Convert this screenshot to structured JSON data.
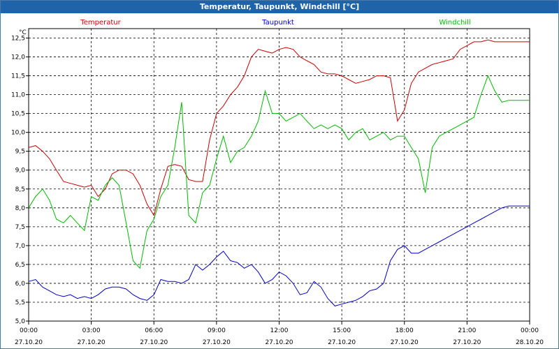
{
  "window": {
    "title": "Temperatur, Taupunkt, Windchill [°C]"
  },
  "chart_data": {
    "type": "line",
    "title": "Temperatur, Taupunkt, Windchill [°C]",
    "ylabel": "°C",
    "xlabel": "",
    "ylim": [
      5.0,
      12.75
    ],
    "xlim": [
      0,
      24
    ],
    "grid": true,
    "legend_placement": "top",
    "y_ticks": [
      "5,0",
      "5,5",
      "6,0",
      "6,5",
      "7,0",
      "7,5",
      "8,0",
      "8,5",
      "9,0",
      "9,5",
      "10,0",
      "10,5",
      "11,0",
      "11,5",
      "12,0",
      "12,5"
    ],
    "x_ticks": [
      {
        "time": "00:00",
        "date": "27.10.20"
      },
      {
        "time": "03:00",
        "date": "27.10.20"
      },
      {
        "time": "06:00",
        "date": "27.10.20"
      },
      {
        "time": "09:00",
        "date": "27.10.20"
      },
      {
        "time": "12:00",
        "date": "27.10.20"
      },
      {
        "time": "15:00",
        "date": "27.10.20"
      },
      {
        "time": "18:00",
        "date": "27.10.20"
      },
      {
        "time": "21:00",
        "date": "27.10.20"
      },
      {
        "time": "00:00",
        "date": "28.10.20"
      }
    ],
    "series": [
      {
        "name": "Temperatur",
        "color": "#cc0000",
        "x": [
          0,
          0.33,
          0.67,
          1,
          1.33,
          1.67,
          2,
          2.33,
          2.67,
          3,
          3.33,
          3.67,
          4,
          4.33,
          4.67,
          5,
          5.33,
          5.67,
          6,
          6.33,
          6.67,
          7,
          7.33,
          7.67,
          8,
          8.33,
          8.67,
          9,
          9.33,
          9.67,
          10,
          10.33,
          10.67,
          11,
          11.33,
          11.67,
          12,
          12.33,
          12.67,
          13,
          13.33,
          13.67,
          14,
          14.33,
          14.67,
          15,
          15.33,
          15.67,
          16,
          16.33,
          16.67,
          17,
          17.33,
          17.67,
          18,
          18.33,
          18.67,
          19,
          19.33,
          19.67,
          20,
          20.33,
          20.67,
          21,
          21.33,
          21.67,
          22,
          22.33,
          22.67,
          23,
          23.33,
          23.67,
          24
        ],
        "y": [
          9.6,
          9.65,
          9.5,
          9.3,
          9.0,
          8.7,
          8.65,
          8.6,
          8.55,
          8.6,
          8.3,
          8.5,
          8.9,
          9.0,
          9.0,
          8.9,
          8.6,
          8.1,
          7.8,
          8.5,
          9.1,
          9.15,
          9.1,
          8.75,
          8.7,
          8.7,
          9.8,
          10.5,
          10.7,
          11.0,
          11.2,
          11.5,
          12.0,
          12.2,
          12.15,
          12.1,
          12.2,
          12.25,
          12.2,
          12.0,
          11.9,
          11.8,
          11.6,
          11.55,
          11.55,
          11.5,
          11.4,
          11.3,
          11.35,
          11.4,
          11.5,
          11.5,
          11.45,
          10.3,
          10.6,
          11.3,
          11.6,
          11.7,
          11.8,
          11.85,
          11.9,
          11.95,
          12.2,
          12.3,
          12.4,
          12.4,
          12.45,
          12.4,
          12.4,
          12.4,
          12.4,
          12.4,
          12.4
        ]
      },
      {
        "name": "Taupunkt",
        "color": "#0000cc",
        "x": [
          0,
          0.33,
          0.67,
          1,
          1.33,
          1.67,
          2,
          2.33,
          2.67,
          3,
          3.33,
          3.67,
          4,
          4.33,
          4.67,
          5,
          5.33,
          5.67,
          6,
          6.33,
          6.67,
          7,
          7.33,
          7.67,
          8,
          8.33,
          8.67,
          9,
          9.33,
          9.67,
          10,
          10.33,
          10.67,
          11,
          11.33,
          11.67,
          12,
          12.33,
          12.67,
          13,
          13.33,
          13.67,
          14,
          14.33,
          14.67,
          15,
          15.33,
          15.67,
          16,
          16.33,
          16.67,
          17,
          17.33,
          17.67,
          18,
          18.33,
          18.67,
          19,
          19.33,
          19.67,
          20,
          20.33,
          20.67,
          21,
          21.33,
          21.67,
          22,
          22.33,
          22.67,
          23,
          23.33,
          23.67,
          24
        ],
        "y": [
          6.05,
          6.1,
          5.9,
          5.8,
          5.7,
          5.65,
          5.7,
          5.6,
          5.65,
          5.6,
          5.7,
          5.85,
          5.9,
          5.9,
          5.85,
          5.7,
          5.6,
          5.55,
          5.7,
          6.1,
          6.05,
          6.05,
          6.0,
          6.1,
          6.5,
          6.35,
          6.5,
          6.7,
          6.85,
          6.6,
          6.55,
          6.4,
          6.5,
          6.3,
          6.0,
          6.1,
          6.3,
          6.2,
          6.0,
          5.7,
          5.75,
          6.05,
          5.9,
          5.6,
          5.4,
          5.45,
          5.5,
          5.55,
          5.65,
          5.8,
          5.85,
          6.0,
          6.6,
          6.9,
          7.0,
          6.8,
          6.8,
          6.9,
          7.0,
          7.1,
          7.2,
          7.3,
          7.4,
          7.5,
          7.6,
          7.7,
          7.8,
          7.9,
          8.0,
          8.05,
          8.05,
          8.05,
          8.05
        ]
      },
      {
        "name": "Windchill",
        "color": "#00bb00",
        "x": [
          0,
          0.33,
          0.67,
          1,
          1.33,
          1.67,
          2,
          2.33,
          2.67,
          3,
          3.33,
          3.67,
          4,
          4.33,
          4.67,
          5,
          5.33,
          5.67,
          6,
          6.33,
          6.67,
          7,
          7.33,
          7.67,
          8,
          8.33,
          8.67,
          9,
          9.33,
          9.67,
          10,
          10.33,
          10.67,
          11,
          11.33,
          11.67,
          12,
          12.33,
          12.67,
          13,
          13.33,
          13.67,
          14,
          14.33,
          14.67,
          15,
          15.33,
          15.67,
          16,
          16.33,
          16.67,
          17,
          17.33,
          17.67,
          18,
          18.33,
          18.67,
          19,
          19.33,
          19.67,
          20,
          20.33,
          20.67,
          21,
          21.33,
          21.67,
          22,
          22.33,
          22.67,
          23,
          23.33,
          23.67,
          24
        ],
        "y": [
          8.0,
          8.3,
          8.5,
          8.2,
          7.7,
          7.6,
          7.8,
          7.6,
          7.4,
          8.3,
          8.2,
          8.6,
          8.8,
          8.6,
          7.6,
          6.6,
          6.4,
          7.4,
          7.7,
          8.3,
          8.6,
          9.6,
          10.8,
          7.8,
          7.6,
          8.4,
          8.6,
          9.3,
          9.9,
          9.2,
          9.5,
          9.6,
          9.9,
          10.3,
          11.1,
          10.5,
          10.5,
          10.3,
          10.4,
          10.5,
          10.3,
          10.1,
          10.2,
          10.1,
          10.2,
          10.1,
          9.8,
          10.0,
          10.1,
          9.8,
          9.9,
          10.0,
          9.8,
          9.9,
          9.9,
          9.6,
          9.3,
          8.4,
          9.6,
          9.9,
          10.0,
          10.1,
          10.2,
          10.3,
          10.4,
          11.0,
          11.5,
          11.1,
          10.8,
          10.85,
          10.85,
          10.85,
          10.85
        ]
      }
    ]
  }
}
